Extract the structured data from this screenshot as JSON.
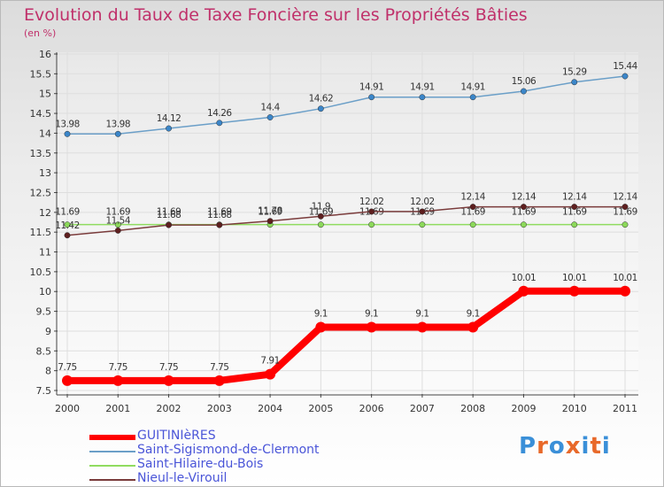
{
  "header": {
    "title": "Evolution du Taux de Taxe Foncière sur les Propriétés Bâties",
    "unit": "(en %)"
  },
  "brand": {
    "text": "Proxiti"
  },
  "chart_data": {
    "type": "line",
    "title": "Evolution du Taux de Taxe Foncière sur les Propriétés Bâties",
    "ylabel": "(en %)",
    "xlabel": "",
    "ylim": [
      7.5,
      16
    ],
    "yticks": [
      7.5,
      8,
      8.5,
      9,
      9.5,
      10,
      10.5,
      11,
      11.5,
      12,
      12.5,
      13,
      13.5,
      14,
      14.5,
      15,
      15.5,
      16
    ],
    "grid": true,
    "legend_position": "bottom-left",
    "categories": [
      "2000",
      "2001",
      "2002",
      "2003",
      "2004",
      "2005",
      "2006",
      "2007",
      "2008",
      "2009",
      "2010",
      "2011"
    ],
    "series": [
      {
        "name": "Saint-Sigismond-de-Clermont",
        "color": "#6b9fc8",
        "marker": "#3b86c9",
        "values": [
          13.98,
          13.98,
          14.12,
          14.26,
          14.4,
          14.62,
          14.91,
          14.91,
          14.91,
          15.06,
          15.29,
          15.44
        ],
        "labels": [
          "13.98",
          "13.98",
          "14.12",
          "14.26",
          "14.4",
          "14.62",
          "14.91",
          "14.91",
          "14.91",
          "15.06",
          "15.29",
          "15.44"
        ]
      },
      {
        "name": "Saint-Hilaire-du-Bois",
        "color": "#90dc60",
        "marker": "#8cd95a",
        "values": [
          11.69,
          11.69,
          11.69,
          11.69,
          11.69,
          11.69,
          11.69,
          11.69,
          11.69,
          11.69,
          11.69,
          11.69
        ],
        "labels": [
          "11.69",
          "11.69",
          "11.69",
          "11.69",
          "11.69",
          "11.69",
          "11.69",
          "11.69",
          "11.69",
          "11.69",
          "11.69",
          "11.69"
        ]
      },
      {
        "name": "Nieul-le-Virouil",
        "color": "#7a3b3b",
        "marker": "#5e1f1f",
        "values": [
          11.42,
          11.54,
          11.68,
          11.68,
          11.78,
          11.9,
          12.02,
          12.02,
          12.14,
          12.14,
          12.14,
          12.14
        ],
        "labels": [
          "11.42",
          "11.54",
          "11.68",
          "11.68",
          "11.78",
          "11.9",
          "12.02",
          "12.02",
          "12.14",
          "12.14",
          "12.14",
          "12.14"
        ]
      },
      {
        "name": "GUITINIèRES",
        "color": "#ff0000",
        "marker": "#ff0000",
        "values": [
          7.75,
          7.75,
          7.75,
          7.75,
          7.91,
          9.1,
          9.1,
          9.1,
          9.1,
          10.01,
          10.01,
          10.01
        ],
        "labels": [
          "7.75",
          "7.75",
          "7.75",
          "7.75",
          "7.91",
          "9.1",
          "9.1",
          "9.1",
          "9.1",
          "10.01",
          "10.01",
          "10.01"
        ]
      }
    ]
  },
  "legend": {
    "items": [
      {
        "label": "GUITINIèRES",
        "color": "#ff0000"
      },
      {
        "label": "Saint-Sigismond-de-Clermont",
        "color": "#6b9fc8"
      },
      {
        "label": "Saint-Hilaire-du-Bois",
        "color": "#90dc60"
      },
      {
        "label": "Nieul-le-Virouil",
        "color": "#7a3b3b"
      }
    ]
  }
}
